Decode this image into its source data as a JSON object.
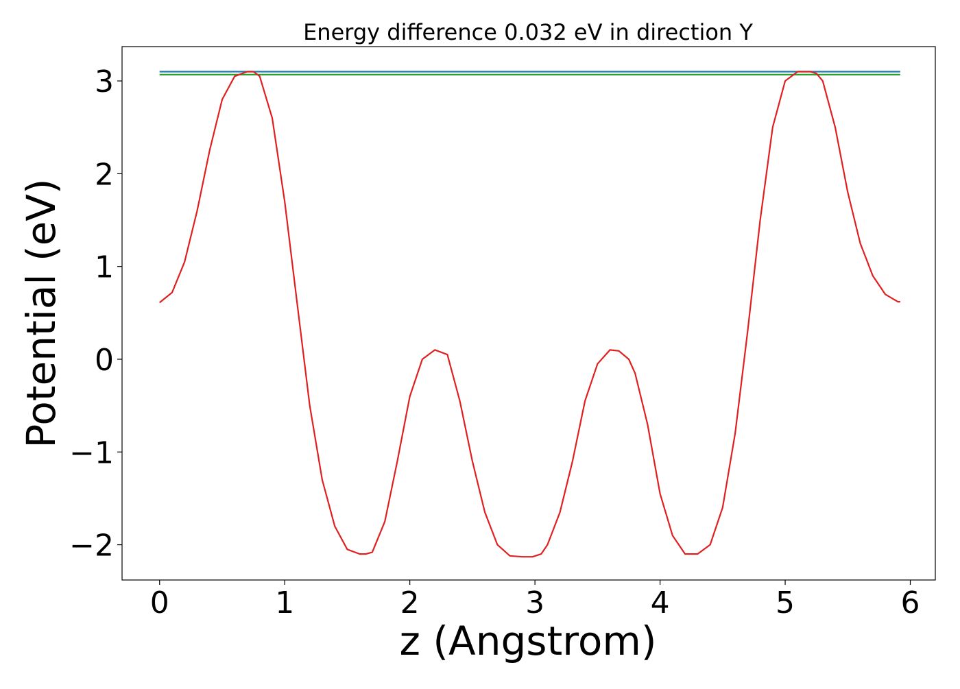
{
  "chart_data": {
    "type": "line",
    "title": "Energy difference 0.032 eV in direction Y",
    "xlabel": "z (Angstrom)",
    "ylabel": "Potential (eV)",
    "xlim": [
      -0.3,
      6.2
    ],
    "ylim": [
      -2.38,
      3.37
    ],
    "x_ticks": [
      0,
      1,
      2,
      3,
      4,
      5,
      6
    ],
    "x_tick_labels": [
      "0",
      "1",
      "2",
      "3",
      "4",
      "5",
      "6"
    ],
    "y_ticks": [
      -2,
      -1,
      0,
      1,
      2,
      3
    ],
    "y_tick_labels": [
      "−2",
      "−1",
      "0",
      "1",
      "2",
      "3"
    ],
    "grid": false,
    "series": [
      {
        "color": "#1f77b4",
        "x": [
          0,
          5.92
        ],
        "y": [
          3.1,
          3.1
        ]
      },
      {
        "color": "#2ca02c",
        "x": [
          0,
          5.92
        ],
        "y": [
          3.068,
          3.068
        ]
      },
      {
        "color": "#e02020",
        "x": [
          0,
          0.1,
          0.2,
          0.3,
          0.4,
          0.5,
          0.6,
          0.7,
          0.75,
          0.8,
          0.9,
          1.0,
          1.1,
          1.2,
          1.3,
          1.4,
          1.5,
          1.6,
          1.65,
          1.7,
          1.8,
          1.9,
          2.0,
          2.1,
          2.2,
          2.3,
          2.4,
          2.5,
          2.6,
          2.7,
          2.8,
          2.9,
          2.98,
          3.05,
          3.1,
          3.2,
          3.3,
          3.4,
          3.5,
          3.6,
          3.67,
          3.75,
          3.8,
          3.9,
          4.0,
          4.1,
          4.2,
          4.3,
          4.4,
          4.5,
          4.6,
          4.7,
          4.8,
          4.9,
          5.0,
          5.1,
          5.2,
          5.25,
          5.3,
          5.4,
          5.5,
          5.6,
          5.7,
          5.8,
          5.9,
          5.92
        ],
        "y": [
          0.61,
          0.72,
          1.05,
          1.6,
          2.25,
          2.8,
          3.05,
          3.1,
          3.1,
          3.05,
          2.6,
          1.7,
          0.6,
          -0.5,
          -1.3,
          -1.8,
          -2.05,
          -2.1,
          -2.1,
          -2.08,
          -1.75,
          -1.1,
          -0.4,
          0.0,
          0.1,
          0.05,
          -0.45,
          -1.1,
          -1.65,
          -2.0,
          -2.12,
          -2.13,
          -2.13,
          -2.1,
          -2.0,
          -1.65,
          -1.1,
          -0.45,
          -0.05,
          0.1,
          0.09,
          0.0,
          -0.15,
          -0.7,
          -1.45,
          -1.9,
          -2.1,
          -2.1,
          -2.0,
          -1.6,
          -0.8,
          0.3,
          1.5,
          2.5,
          3.0,
          3.1,
          3.1,
          3.08,
          3.0,
          2.5,
          1.8,
          1.25,
          0.9,
          0.7,
          0.62,
          0.62
        ]
      }
    ]
  }
}
